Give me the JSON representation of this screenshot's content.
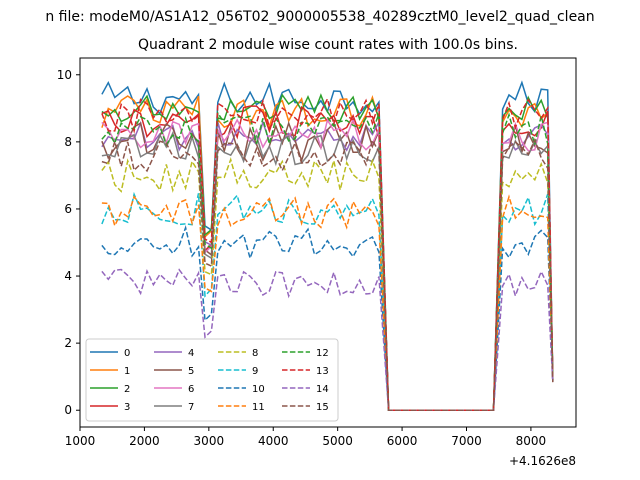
{
  "suptitle": "n file: modeM0/AS1A12_056T02_9000005538_40289cztM0_level2_quad_clean",
  "chart_data": {
    "type": "line",
    "title": "Quadrant 2 module wise count rates with 100.0s bins.",
    "xlabel": "",
    "ylabel": "",
    "x_offset_label": "+4.1626e8",
    "xlim": [
      1000,
      8700
    ],
    "ylim": [
      -0.5,
      10.5
    ],
    "xticks": [
      1000,
      2000,
      3000,
      4000,
      5000,
      6000,
      7000,
      8000
    ],
    "yticks": [
      0,
      2,
      4,
      6,
      8,
      10
    ],
    "grid": false,
    "legend_placement": "lower-left",
    "legend_columns": 4,
    "good_time_intervals": [
      [
        1340,
        5640
      ],
      [
        7560,
        8340
      ]
    ],
    "gap_start": 5790,
    "gap_end": 7420,
    "dips": [
      {
        "start": 2840,
        "center": 2990,
        "end": 3140
      }
    ],
    "series": [
      {
        "name": "0",
        "level": 9.3,
        "amp": 0.3,
        "dip": 3.4,
        "color": "#1f77b4",
        "dash": "solid"
      },
      {
        "name": "1",
        "level": 8.9,
        "amp": 0.3,
        "dip": 3.3,
        "color": "#ff7f0e",
        "dash": "solid"
      },
      {
        "name": "2",
        "level": 9.0,
        "amp": 0.25,
        "dip": 3.5,
        "color": "#2ca02c",
        "dash": "solid"
      },
      {
        "name": "3",
        "level": 8.6,
        "amp": 0.3,
        "dip": 3.2,
        "color": "#d62728",
        "dash": "solid"
      },
      {
        "name": "4",
        "level": 8.2,
        "amp": 0.3,
        "dip": 3.1,
        "color": "#9467bd",
        "dash": "solid"
      },
      {
        "name": "5",
        "level": 8.0,
        "amp": 0.35,
        "dip": 3.0,
        "color": "#8c564b",
        "dash": "solid"
      },
      {
        "name": "6",
        "level": 8.2,
        "amp": 0.3,
        "dip": 3.0,
        "color": "#e377c2",
        "dash": "solid"
      },
      {
        "name": "7",
        "level": 7.8,
        "amp": 0.3,
        "dip": 2.9,
        "color": "#7f7f7f",
        "dash": "solid"
      },
      {
        "name": "8",
        "level": 7.0,
        "amp": 0.3,
        "dip": 2.7,
        "color": "#bcbd22",
        "dash": "dashed"
      },
      {
        "name": "9",
        "level": 6.0,
        "amp": 0.3,
        "dip": 2.3,
        "color": "#17becf",
        "dash": "dashed"
      },
      {
        "name": "10",
        "level": 5.0,
        "amp": 0.3,
        "dip": 1.9,
        "color": "#1f77b4",
        "dash": "dashed"
      },
      {
        "name": "11",
        "level": 5.9,
        "amp": 0.3,
        "dip": 2.2,
        "color": "#ff7f0e",
        "dash": "dashed"
      },
      {
        "name": "12",
        "level": 8.4,
        "amp": 0.3,
        "dip": 3.1,
        "color": "#2ca02c",
        "dash": "dashed"
      },
      {
        "name": "13",
        "level": 8.8,
        "amp": 0.3,
        "dip": 3.3,
        "color": "#d62728",
        "dash": "dashed"
      },
      {
        "name": "14",
        "level": 3.8,
        "amp": 0.25,
        "dip": 1.6,
        "color": "#9467bd",
        "dash": "dashed"
      },
      {
        "name": "15",
        "level": 7.6,
        "amp": 0.3,
        "dip": 2.8,
        "color": "#8c564b",
        "dash": "dashed"
      }
    ]
  }
}
